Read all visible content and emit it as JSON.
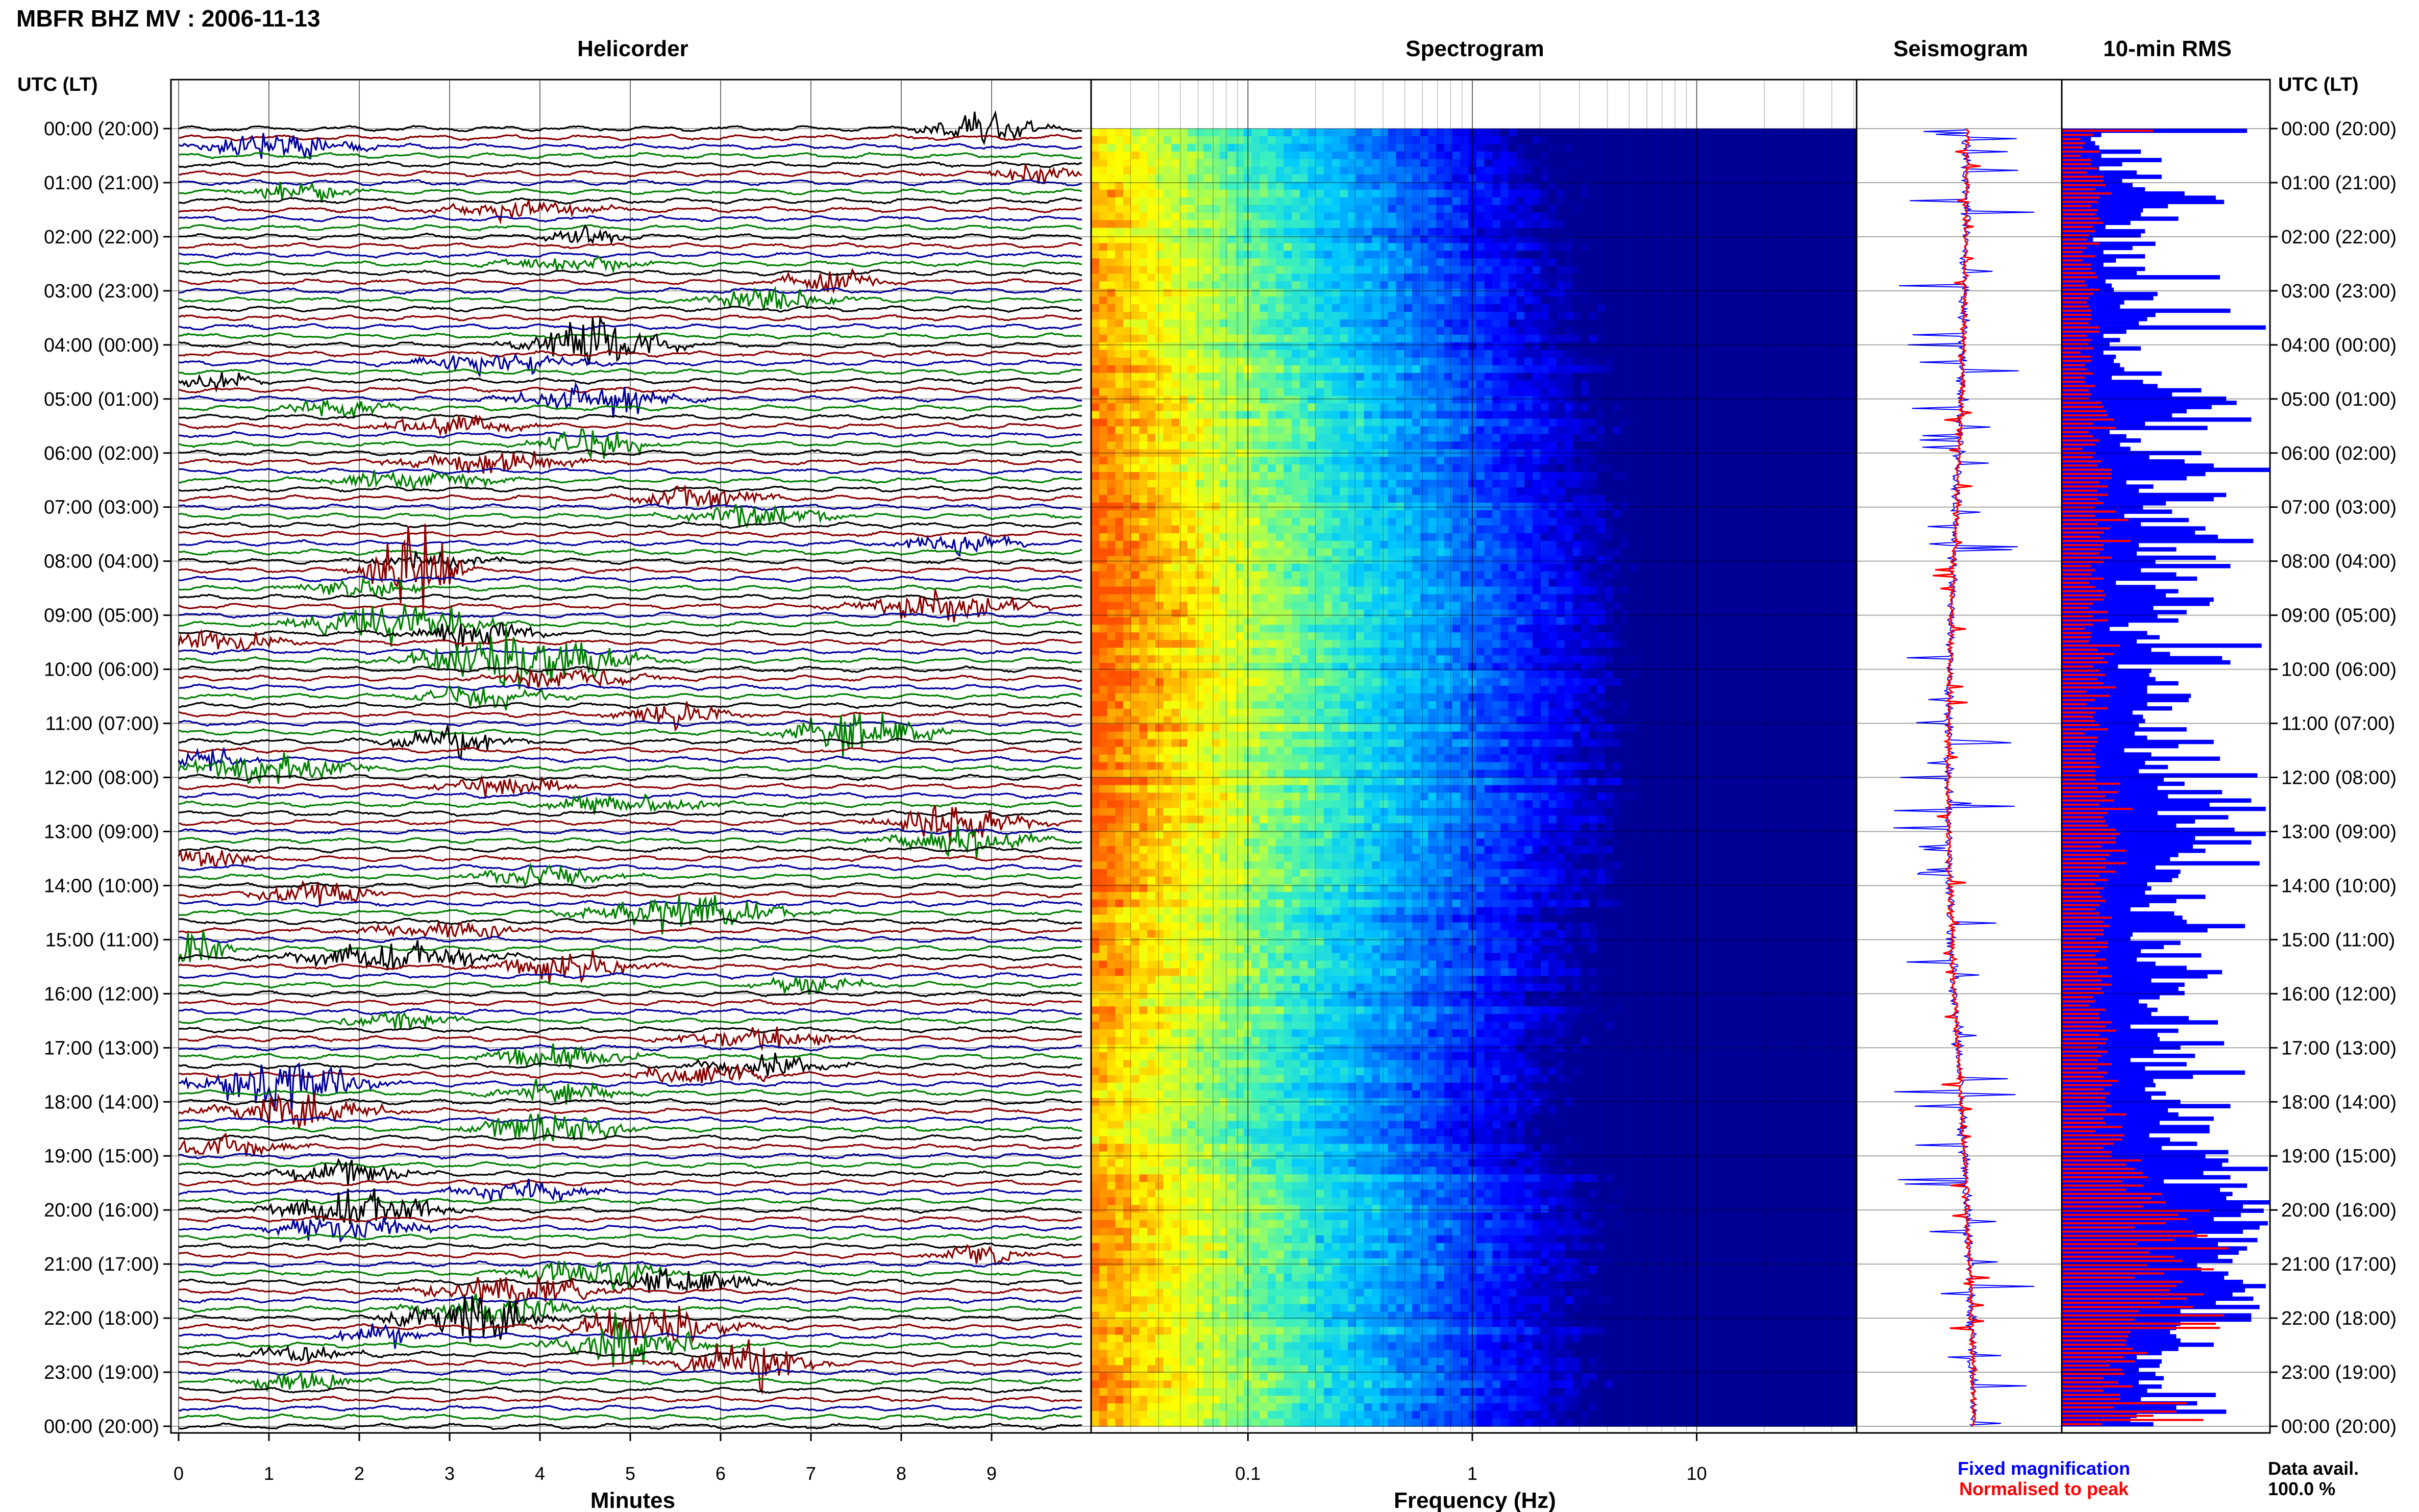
{
  "header": {
    "station_title": "MBFR BHZ MV : 2006-11-13",
    "time_axis_title_left": "UTC (LT)",
    "time_axis_title_right": "UTC (LT)"
  },
  "panels": {
    "helicorder_title": "Helicorder",
    "spectrogram_title": "Spectrogram",
    "seismogram_title": "Seismogram",
    "rms_title": "10-min RMS"
  },
  "axes": {
    "helicorder_xlabel": "Minutes",
    "spectrogram_xlabel": "Frequency (Hz)"
  },
  "legend": {
    "fixed_label": "Fixed magnification",
    "normalised_label": "Normalised to peak",
    "fixed_color": "#0000ff",
    "normalised_color": "#ff0000"
  },
  "data_avail": {
    "label": "Data avail.",
    "value": "100.0 %"
  },
  "colors": {
    "trace_cycle": [
      "#000000",
      "#8b0000",
      "#0000a0",
      "#008000"
    ],
    "rms_fixed": "#0000ff",
    "rms_normalised": "#ff0000"
  },
  "chart_data": [
    {
      "type": "line",
      "name": "helicorder",
      "title": "Helicorder",
      "xlabel": "Minutes",
      "x_ticks": [
        "0",
        "1",
        "2",
        "3",
        "4",
        "5",
        "6",
        "7",
        "8",
        "9"
      ],
      "xlim": [
        0,
        10
      ],
      "lines_per_hour": 6,
      "line_minutes": 10,
      "y_ticks": [
        "00:00 (20:00)",
        "01:00 (21:00)",
        "02:00 (22:00)",
        "03:00 (23:00)",
        "04:00 (00:00)",
        "05:00 (01:00)",
        "06:00 (02:00)",
        "07:00 (03:00)",
        "08:00 (04:00)",
        "09:00 (05:00)",
        "10:00 (06:00)",
        "11:00 (07:00)",
        "12:00 (08:00)",
        "13:00 (09:00)",
        "14:00 (10:00)",
        "15:00 (11:00)",
        "16:00 (12:00)",
        "17:00 (13:00)",
        "18:00 (14:00)",
        "19:00 (15:00)",
        "20:00 (16:00)",
        "21:00 (17:00)",
        "22:00 (18:00)",
        "23:00 (19:00)",
        "00:00 (20:00)"
      ]
    },
    {
      "type": "heatmap",
      "name": "spectrogram",
      "title": "Spectrogram",
      "xlabel": "Frequency (Hz)",
      "x_scale": "log",
      "x_ticks": [
        "0.1",
        "1",
        "10"
      ],
      "xlim": [
        0.02,
        50
      ]
    },
    {
      "type": "line",
      "name": "seismogram",
      "title": "Seismogram",
      "series": [
        {
          "name": "Fixed magnification",
          "color": "#0000ff"
        },
        {
          "name": "Normalised to peak",
          "color": "#ff0000"
        }
      ]
    },
    {
      "type": "bar",
      "name": "rms",
      "title": "10-min RMS",
      "orientation": "horizontal",
      "series": [
        {
          "name": "Fixed magnification",
          "color": "#0000ff",
          "values": [
            0.89,
            0.19,
            0.14,
            0.16,
            0.18,
            0.38,
            0.19,
            0.48,
            0.29,
            0.18,
            0.36,
            0.48,
            0.29,
            0.34,
            0.4,
            0.59,
            0.74,
            0.78,
            0.51,
            0.39,
            0.38,
            0.56,
            0.33,
            0.21,
            0.4,
            0.38,
            0.15,
            0.45,
            0.34,
            0.2,
            0.4,
            0.26,
            0.2,
            0.4,
            0.36,
            0.76,
            0.21,
            0.24,
            0.25,
            0.46,
            0.44,
            0.3,
            0.28,
            0.81,
            0.45,
            0.41,
            0.37,
            0.98,
            0.31,
            0.2,
            0.28,
            0.23,
            0.38,
            0.2,
            0.26,
            0.25,
            0.28,
            0.3,
            0.48,
            0.24,
            0.39,
            0.46,
            0.67,
            0.53,
            0.79,
            0.84,
            0.72,
            0.6,
            0.53,
            0.91,
            0.4,
            0.7,
            0.23,
            0.31,
            0.38,
            0.28,
            0.33,
            0.67,
            0.42,
            0.59,
            0.73,
            1.0,
            0.69,
            0.6,
            0.31,
            0.44,
            0.37,
            0.79,
            0.73,
            0.5,
            0.39,
            0.53,
            0.3,
            0.61,
            0.38,
            0.69,
            0.64,
            0.75,
            0.92,
            0.37,
            0.55,
            0.36,
            0.74,
            0.45,
            0.81,
            0.38,
            0.55,
            0.65,
            0.26,
            0.45,
            0.56,
            0.5,
            0.73,
            0.71,
            0.44,
            0.6,
            0.46,
            0.56,
            0.32,
            0.23,
            0.41,
            0.47,
            0.36,
            0.96,
            0.43,
            0.52,
            0.77,
            0.81,
            0.27,
            0.43,
            0.42,
            0.45,
            0.56,
            0.41,
            0.41,
            0.62,
            0.61,
            0.41,
            0.53,
            0.34,
            0.39,
            0.4,
            0.37,
            0.6,
            0.35,
            0.41,
            0.73,
            0.56,
            0.3,
            0.43,
            0.76,
            0.4,
            0.51,
            0.37,
            0.94,
            0.49,
            0.59,
            0.46,
            0.77,
            0.51,
            0.91,
            0.71,
            0.98,
            0.46,
            0.8,
            0.64,
            0.55,
            0.83,
            0.98,
            0.64,
            0.91,
            0.63,
            0.69,
            0.56,
            0.52,
            0.95,
            0.45,
            0.57,
            0.56,
            0.53,
            0.41,
            0.43,
            0.4,
            0.69,
            0.55,
            0.42,
            0.33,
            0.54,
            0.58,
            0.6,
            0.88,
            0.7,
            0.34,
            0.33,
            0.57,
            0.49,
            0.38,
            0.67,
            0.36,
            0.45,
            0.6,
            0.77,
            0.7,
            0.43,
            0.59,
            0.56,
            0.59,
            0.47,
            0.37,
            0.41,
            0.46,
            0.43,
            0.61,
            0.75,
            0.33,
            0.56,
            0.46,
            0.47,
            0.78,
            0.57,
            0.44,
            0.64,
            0.33,
            0.6,
            0.4,
            0.88,
            0.63,
            0.44,
            0.45,
            0.4,
            0.5,
            0.43,
            0.57,
            0.81,
            0.51,
            0.56,
            0.73,
            0.47,
            0.71,
            0.71,
            0.42,
            0.52,
            0.65,
            0.48,
            0.8,
            0.69,
            0.8,
            0.77,
            0.99,
            0.68,
            0.81,
            0.49,
            0.89,
            0.76,
            0.82,
            0.79,
            1.0,
            0.87,
            0.97,
            0.86,
            0.73,
            0.99,
            0.95,
            0.87,
            0.65,
            0.94,
            0.75,
            0.89,
            0.85,
            0.75,
            0.82,
            0.65,
            0.67,
            0.8,
            0.78,
            0.87,
            0.98,
            0.88,
            0.82,
            0.92,
            0.74,
            0.95,
            0.57,
            0.91,
            0.91,
            0.57,
            0.55,
            0.52,
            0.55,
            0.57,
            0.73,
            0.56,
            0.48,
            0.36,
            0.48,
            0.47,
            0.37,
            0.45,
            0.49,
            0.37,
            0.48,
            0.41,
            0.74,
            0.38,
            0.65,
            0.55,
            0.79,
            0.36,
            0.33,
            0.44
          ]
        },
        {
          "name": "Normalised to peak",
          "color": "#ff0000",
          "values": [
            0.44,
            0.15,
            0.09,
            0.11,
            0.1,
            0.18,
            0.09,
            0.14,
            0.14,
            0.17,
            0.12,
            0.2,
            0.2,
            0.21,
            0.16,
            0.24,
            0.18,
            0.17,
            0.14,
            0.17,
            0.16,
            0.18,
            0.2,
            0.15,
            0.16,
            0.13,
            0.12,
            0.18,
            0.12,
            0.1,
            0.16,
            0.1,
            0.14,
            0.14,
            0.16,
            0.17,
            0.11,
            0.12,
            0.18,
            0.15,
            0.13,
            0.12,
            0.13,
            0.14,
            0.14,
            0.14,
            0.13,
            0.18,
            0.18,
            0.12,
            0.14,
            0.13,
            0.15,
            0.09,
            0.14,
            0.14,
            0.11,
            0.12,
            0.15,
            0.11,
            0.11,
            0.16,
            0.13,
            0.14,
            0.13,
            0.19,
            0.2,
            0.21,
            0.22,
            0.25,
            0.15,
            0.26,
            0.13,
            0.15,
            0.18,
            0.16,
            0.1,
            0.16,
            0.15,
            0.19,
            0.17,
            0.24,
            0.24,
            0.24,
            0.18,
            0.22,
            0.17,
            0.22,
            0.17,
            0.2,
            0.16,
            0.26,
            0.16,
            0.32,
            0.17,
            0.23,
            0.2,
            0.18,
            0.33,
            0.2,
            0.2,
            0.18,
            0.24,
            0.2,
            0.14,
            0.16,
            0.14,
            0.2,
            0.13,
            0.16,
            0.2,
            0.21,
            0.2,
            0.15,
            0.13,
            0.22,
            0.15,
            0.22,
            0.15,
            0.11,
            0.14,
            0.14,
            0.13,
            0.28,
            0.17,
            0.25,
            0.2,
            0.22,
            0.15,
            0.18,
            0.21,
            0.17,
            0.2,
            0.26,
            0.12,
            0.23,
            0.16,
            0.12,
            0.22,
            0.16,
            0.15,
            0.16,
            0.18,
            0.22,
            0.11,
            0.17,
            0.17,
            0.16,
            0.14,
            0.16,
            0.16,
            0.16,
            0.18,
            0.16,
            0.16,
            0.16,
            0.28,
            0.17,
            0.27,
            0.21,
            0.25,
            0.18,
            0.34,
            0.22,
            0.2,
            0.21,
            0.22,
            0.26,
            0.28,
            0.26,
            0.26,
            0.19,
            0.31,
            0.23,
            0.21,
            0.31,
            0.21,
            0.26,
            0.18,
            0.22,
            0.16,
            0.2,
            0.18,
            0.19,
            0.21,
            0.18,
            0.16,
            0.18,
            0.24,
            0.2,
            0.23,
            0.2,
            0.2,
            0.16,
            0.22,
            0.22,
            0.18,
            0.16,
            0.21,
            0.17,
            0.22,
            0.17,
            0.24,
            0.19,
            0.24,
            0.19,
            0.2,
            0.15,
            0.16,
            0.13,
            0.21,
            0.18,
            0.18,
            0.24,
            0.21,
            0.26,
            0.18,
            0.22,
            0.21,
            0.17,
            0.22,
            0.19,
            0.17,
            0.24,
            0.17,
            0.22,
            0.2,
            0.27,
            0.24,
            0.2,
            0.23,
            0.21,
            0.21,
            0.24,
            0.21,
            0.31,
            0.2,
            0.21,
            0.29,
            0.16,
            0.3,
            0.29,
            0.25,
            0.2,
            0.24,
            0.24,
            0.38,
            0.31,
            0.35,
            0.39,
            0.41,
            0.29,
            0.39,
            0.31,
            0.48,
            0.43,
            0.5,
            0.39,
            0.71,
            0.56,
            0.6,
            0.5,
            0.35,
            0.63,
            0.7,
            0.54,
            0.36,
            0.8,
            0.42,
            0.54,
            0.58,
            0.41,
            0.73,
            0.49,
            0.35,
            0.58,
            0.55,
            0.52,
            0.68,
            0.6,
            0.47,
            0.63,
            0.37,
            0.78,
            0.35,
            0.74,
            0.76,
            0.33,
            0.32,
            0.31,
            0.31,
            0.34,
            0.41,
            0.3,
            0.35,
            0.23,
            0.29,
            0.3,
            0.2,
            0.27,
            0.34,
            0.2,
            0.28,
            0.28,
            0.6,
            0.25,
            0.55,
            0.44,
            0.68,
            0.19,
            0.18,
            0.3
          ]
        }
      ]
    }
  ]
}
